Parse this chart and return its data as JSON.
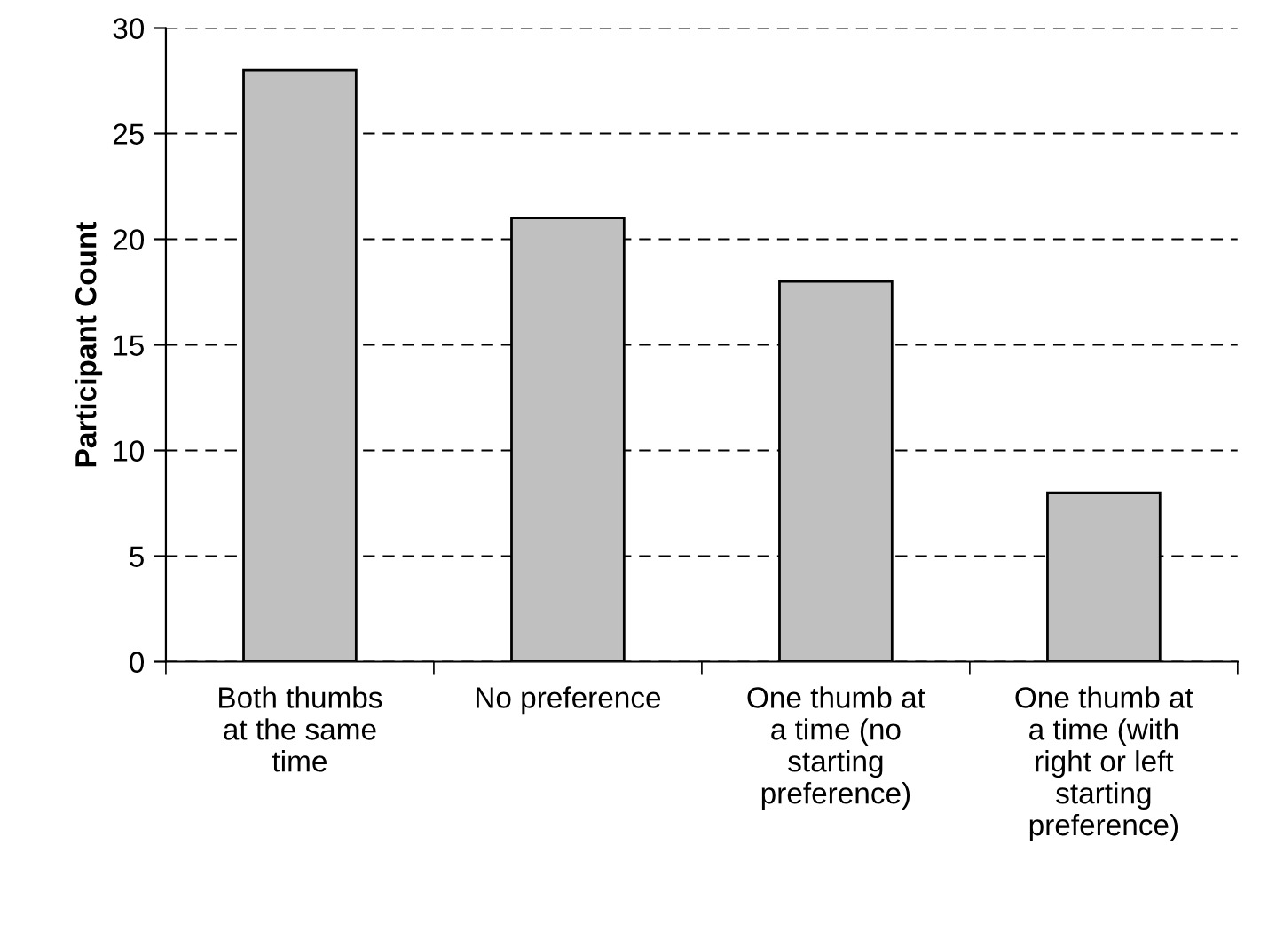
{
  "chart_data": {
    "type": "bar",
    "ylabel": "Participant Count",
    "categories": [
      "Both thumbs\nat the same\ntime",
      "No preference",
      "One thumb at\na time (no\nstarting\npreference)",
      "One thumb at\na time (with\nright or left\nstarting\npreference)"
    ],
    "values": [
      28,
      21,
      18,
      8
    ],
    "color": "#c0c0c0",
    "ylim": [
      0,
      30
    ],
    "yticks": [
      0,
      5,
      10,
      15,
      20,
      25,
      30
    ],
    "grid": "y",
    "line_style": "dashed"
  }
}
